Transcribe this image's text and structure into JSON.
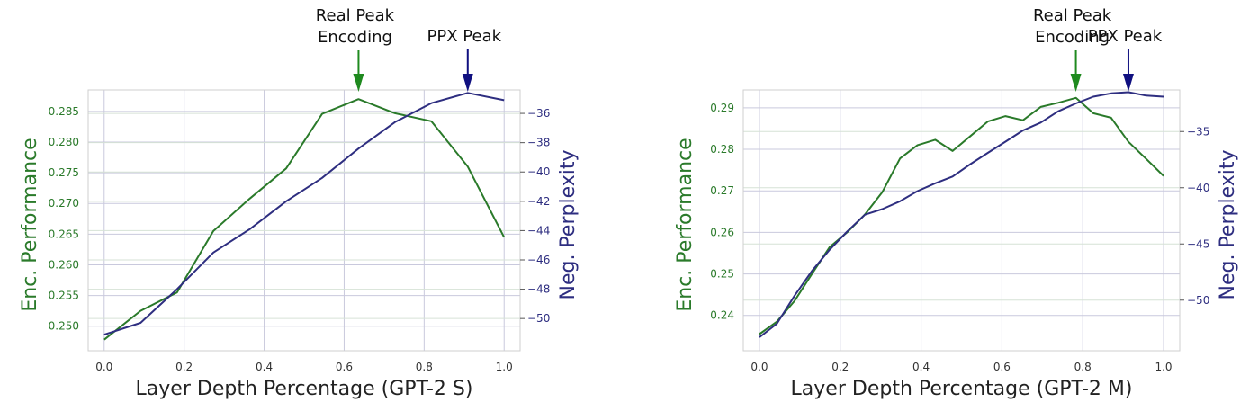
{
  "colors": {
    "encoding": "#2a7a2a",
    "perplexity": "#2e2e80",
    "grid": "#c9c9dd",
    "real_peak_arrow": "#1f8a1f",
    "ppx_peak_arrow": "#101080"
  },
  "chart_data": [
    {
      "type": "line",
      "xlabel": "Layer Depth Percentage (GPT-2 S)",
      "ylabel_left": "Enc. Performance",
      "ylabel_right": "Neg. Perplexity",
      "grid": true,
      "xlim": [
        -0.04,
        1.04
      ],
      "ylim_left": [
        0.246,
        0.2885
      ],
      "ylim_right": [
        -52.2,
        -34.4
      ],
      "xticks": [
        "0.0",
        "0.2",
        "0.4",
        "0.6",
        "0.8",
        "1.0"
      ],
      "xtick_values": [
        0,
        0.2,
        0.4,
        0.6,
        0.8,
        1.0
      ],
      "yticks_left": [
        "0.250",
        "0.255",
        "0.260",
        "0.265",
        "0.270",
        "0.275",
        "0.280",
        "0.285"
      ],
      "ytick_values_left": [
        0.25,
        0.255,
        0.26,
        0.265,
        0.27,
        0.275,
        0.28,
        0.285
      ],
      "yticks_right": [
        "−50",
        "−48",
        "−46",
        "−44",
        "−42",
        "−40",
        "−38",
        "−36"
      ],
      "ytick_values_right": [
        -50,
        -48,
        -46,
        -44,
        -42,
        -40,
        -38,
        -36
      ],
      "series": [
        {
          "axis": "left",
          "x": [
            0,
            0.091,
            0.182,
            0.273,
            0.364,
            0.455,
            0.545,
            0.636,
            0.727,
            0.818,
            0.909,
            1.0
          ],
          "values": [
            0.2478,
            0.2525,
            0.2555,
            0.2655,
            0.2708,
            0.2757,
            0.2846,
            0.287,
            0.2847,
            0.2834,
            0.276,
            0.2645
          ]
        },
        {
          "axis": "right",
          "x": [
            0,
            0.091,
            0.182,
            0.273,
            0.364,
            0.455,
            0.545,
            0.636,
            0.727,
            0.818,
            0.909,
            1.0
          ],
          "values": [
            -51.1,
            -50.3,
            -48.0,
            -45.5,
            -43.9,
            -42.0,
            -40.4,
            -38.4,
            -36.6,
            -35.3,
            -34.6,
            -35.1
          ]
        }
      ],
      "annotations": [
        {
          "label_lines": [
            "Real Peak",
            "Encoding"
          ],
          "x": 0.636,
          "kind": "real"
        },
        {
          "label_lines": [
            "PPX Peak"
          ],
          "x": 0.909,
          "kind": "ppx"
        }
      ]
    },
    {
      "type": "line",
      "xlabel": "Layer Depth Percentage (GPT-2 M)",
      "ylabel_left": "Enc. Performance",
      "ylabel_right": "Neg. Perplexity",
      "grid": true,
      "xlim": [
        -0.04,
        1.04
      ],
      "ylim_left": [
        0.2315,
        0.2943
      ],
      "ylim_right": [
        -54.5,
        -31.3
      ],
      "xticks": [
        "0.0",
        "0.2",
        "0.4",
        "0.6",
        "0.8",
        "1.0"
      ],
      "xtick_values": [
        0,
        0.2,
        0.4,
        0.6,
        0.8,
        1.0
      ],
      "yticks_left": [
        "0.24",
        "0.25",
        "0.26",
        "0.27",
        "0.28",
        "0.29"
      ],
      "ytick_values_left": [
        0.24,
        0.25,
        0.26,
        0.27,
        0.28,
        0.29
      ],
      "yticks_right": [
        "−50",
        "−45",
        "−40",
        "−35"
      ],
      "ytick_values_right": [
        -50,
        -45,
        -40,
        -35
      ],
      "series": [
        {
          "axis": "left",
          "x": [
            0,
            0.043,
            0.087,
            0.13,
            0.174,
            0.217,
            0.261,
            0.304,
            0.348,
            0.391,
            0.435,
            0.478,
            0.522,
            0.565,
            0.609,
            0.652,
            0.696,
            0.739,
            0.783,
            0.826,
            0.87,
            0.913,
            0.957,
            1.0
          ],
          "values": [
            0.2355,
            0.2385,
            0.2435,
            0.25,
            0.2565,
            0.26,
            0.2643,
            0.2697,
            0.2778,
            0.281,
            0.2823,
            0.2796,
            0.2832,
            0.2867,
            0.288,
            0.287,
            0.2902,
            0.2912,
            0.2924,
            0.2887,
            0.2876,
            0.2818,
            0.2777,
            0.2736
          ]
        },
        {
          "axis": "right",
          "x": [
            0,
            0.043,
            0.087,
            0.13,
            0.174,
            0.217,
            0.261,
            0.304,
            0.348,
            0.391,
            0.435,
            0.478,
            0.522,
            0.565,
            0.609,
            0.652,
            0.696,
            0.739,
            0.783,
            0.826,
            0.87,
            0.913,
            0.957,
            1.0
          ],
          "values": [
            -53.3,
            -52.1,
            -49.6,
            -47.4,
            -45.5,
            -43.9,
            -42.4,
            -41.9,
            -41.2,
            -40.3,
            -39.6,
            -39.0,
            -37.9,
            -36.9,
            -35.9,
            -34.9,
            -34.2,
            -33.2,
            -32.5,
            -31.9,
            -31.6,
            -31.5,
            -31.8,
            -31.9
          ]
        }
      ],
      "annotations": [
        {
          "label_lines": [
            "Real Peak",
            "Encoding"
          ],
          "x": 0.783,
          "kind": "real"
        },
        {
          "label_lines": [
            "PPX Peak"
          ],
          "x": 0.913,
          "kind": "ppx"
        }
      ]
    }
  ]
}
